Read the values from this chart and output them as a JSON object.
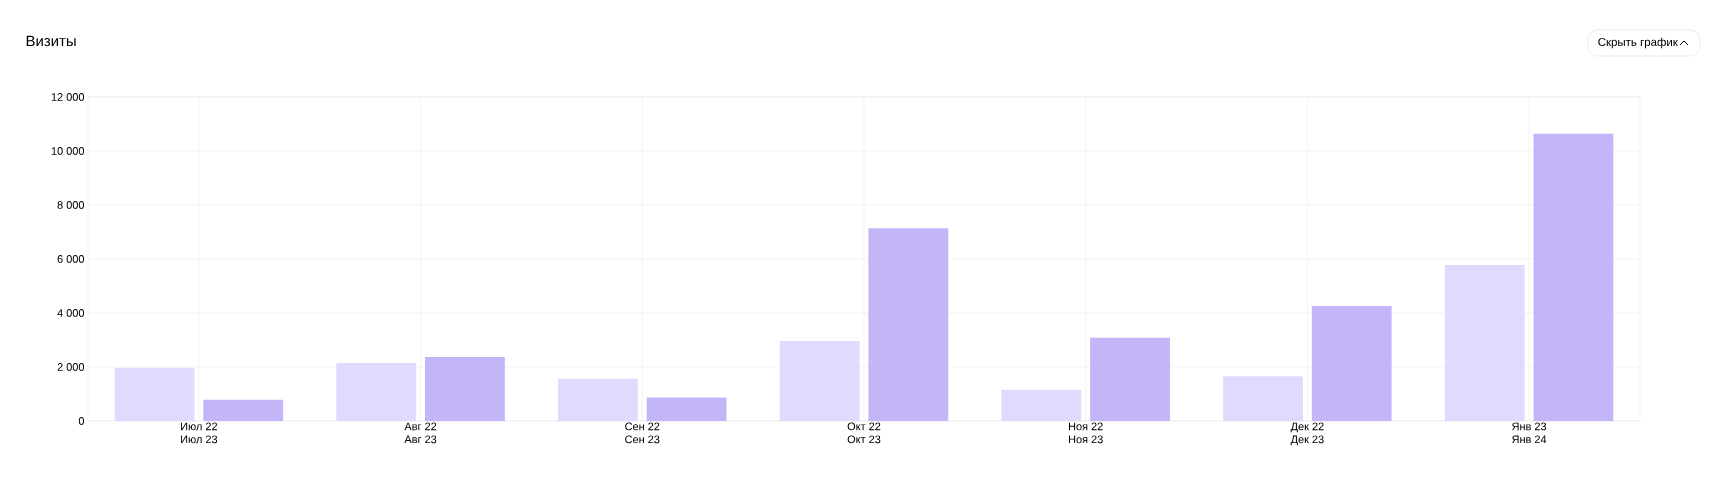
{
  "chart_data": {
    "type": "bar",
    "title": "Визиты",
    "annotations": [
      "Скрыть график"
    ],
    "categories": [
      "Июл 22\nИюл 23",
      "Авг 22\nАвг 23",
      "Сен 22\nСен 23",
      "Окт 22\nОкт 23",
      "Ноя 22\nНоя 23",
      "Дек 22\nДек 23",
      "Янв 23\nЯнв 24"
    ],
    "series": [
      {
        "color": "#e2dafc",
        "values": [
          1970,
          2150,
          1560,
          2960,
          1160,
          1660,
          5780
        ]
      },
      {
        "color": "#c4b5f9",
        "values": [
          790,
          2370,
          870,
          7140,
          3080,
          4260,
          10640
        ]
      }
    ],
    "ylim": [
      0,
      12000
    ],
    "yticks": [
      {
        "value": 0,
        "label": "0"
      },
      {
        "value": 2000,
        "label": "2 000"
      },
      {
        "value": 4000,
        "label": "4 000"
      },
      {
        "value": 6000,
        "label": "6 000"
      },
      {
        "value": 8000,
        "label": "8 000"
      },
      {
        "value": 10000,
        "label": "10 000"
      },
      {
        "value": 12000,
        "label": "12 000"
      }
    ],
    "grid": true
  }
}
